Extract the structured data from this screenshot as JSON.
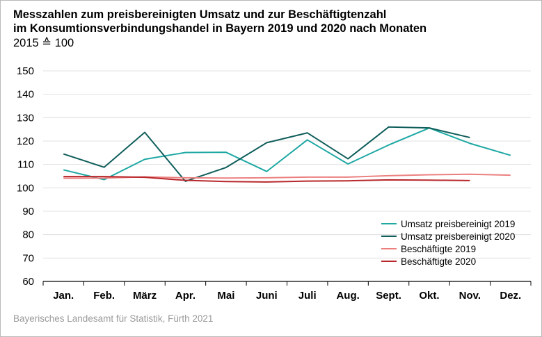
{
  "title_line1": "Messzahlen zum preisbereinigten Umsatz und zur Beschäftigtenzahl",
  "title_line2": "im Konsumtionsverbindungshandel in Bayern 2019 und 2020 nach Monaten",
  "subtitle": "2015 ≙ 100",
  "source": "Bayerisches Landesamt für Statistik, Fürth 2021",
  "chart_data": {
    "type": "line",
    "categories": [
      "Jan.",
      "Feb.",
      "März",
      "Apr.",
      "Mai",
      "Juni",
      "Juli",
      "Aug.",
      "Sept.",
      "Okt.",
      "Nov.",
      "Dez."
    ],
    "ylim": [
      60,
      150
    ],
    "yticks": [
      60,
      70,
      80,
      90,
      100,
      110,
      120,
      130,
      140,
      150
    ],
    "grid": true,
    "legend_position": "bottom-right",
    "series": [
      {
        "name": "Umsatz preisbereinigt 2019",
        "color": "#1ea8a3",
        "values": [
          107.7,
          103.5,
          112.2,
          115.1,
          115.2,
          107.0,
          120.5,
          110.2,
          118.3,
          125.6,
          119.0,
          113.9
        ]
      },
      {
        "name": "Umsatz preisbereinigt 2020",
        "color": "#0f5e5b",
        "values": [
          114.5,
          108.8,
          123.7,
          102.8,
          108.7,
          119.3,
          123.5,
          112.4,
          126.0,
          125.6,
          121.5,
          null
        ]
      },
      {
        "name": "Beschäftigte 2019",
        "color": "#ec8080",
        "values": [
          104.1,
          104.2,
          104.7,
          104.3,
          104.2,
          104.3,
          104.6,
          104.6,
          105.2,
          105.6,
          105.8,
          105.4
        ]
      },
      {
        "name": "Beschäftigte 2020",
        "color": "#b8282c",
        "values": [
          104.8,
          104.8,
          104.5,
          103.2,
          102.7,
          102.5,
          102.9,
          103.0,
          103.4,
          103.3,
          103.1,
          null
        ]
      }
    ]
  }
}
